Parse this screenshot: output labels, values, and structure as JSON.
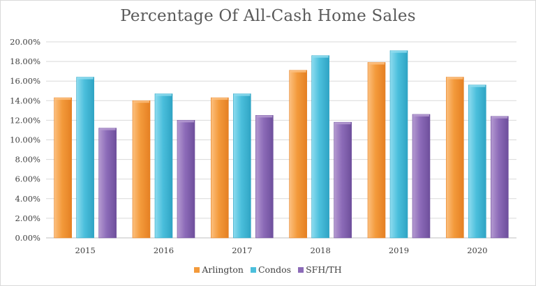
{
  "chart_data": {
    "type": "bar",
    "title": "Percentage Of All-Cash Home Sales",
    "categories": [
      "2015",
      "2016",
      "2017",
      "2018",
      "2019",
      "2020"
    ],
    "series": [
      {
        "name": "Arlington",
        "values": [
          14.3,
          14.0,
          14.3,
          17.1,
          17.9,
          16.4
        ]
      },
      {
        "name": "Condos",
        "values": [
          16.4,
          14.7,
          14.7,
          18.6,
          19.1,
          15.6
        ]
      },
      {
        "name": "SFH/TH",
        "values": [
          11.2,
          12.0,
          12.5,
          11.8,
          12.6,
          12.4
        ]
      }
    ],
    "ylim": [
      0,
      20
    ],
    "yticks": [
      "0.00%",
      "2.00%",
      "4.00%",
      "6.00%",
      "8.00%",
      "10.00%",
      "12.00%",
      "14.00%",
      "16.00%",
      "18.00%",
      "20.00%"
    ],
    "grid": true,
    "legend_position": "bottom",
    "colors": {
      "Arlington": [
        "#fcc080",
        "#f39a3b",
        "#e58023"
      ],
      "Condos": [
        "#8fdcef",
        "#4bbfdc",
        "#2fa4c4"
      ],
      "SFH/TH": [
        "#b59bd1",
        "#8c6bb8",
        "#6e4f9c"
      ]
    }
  }
}
